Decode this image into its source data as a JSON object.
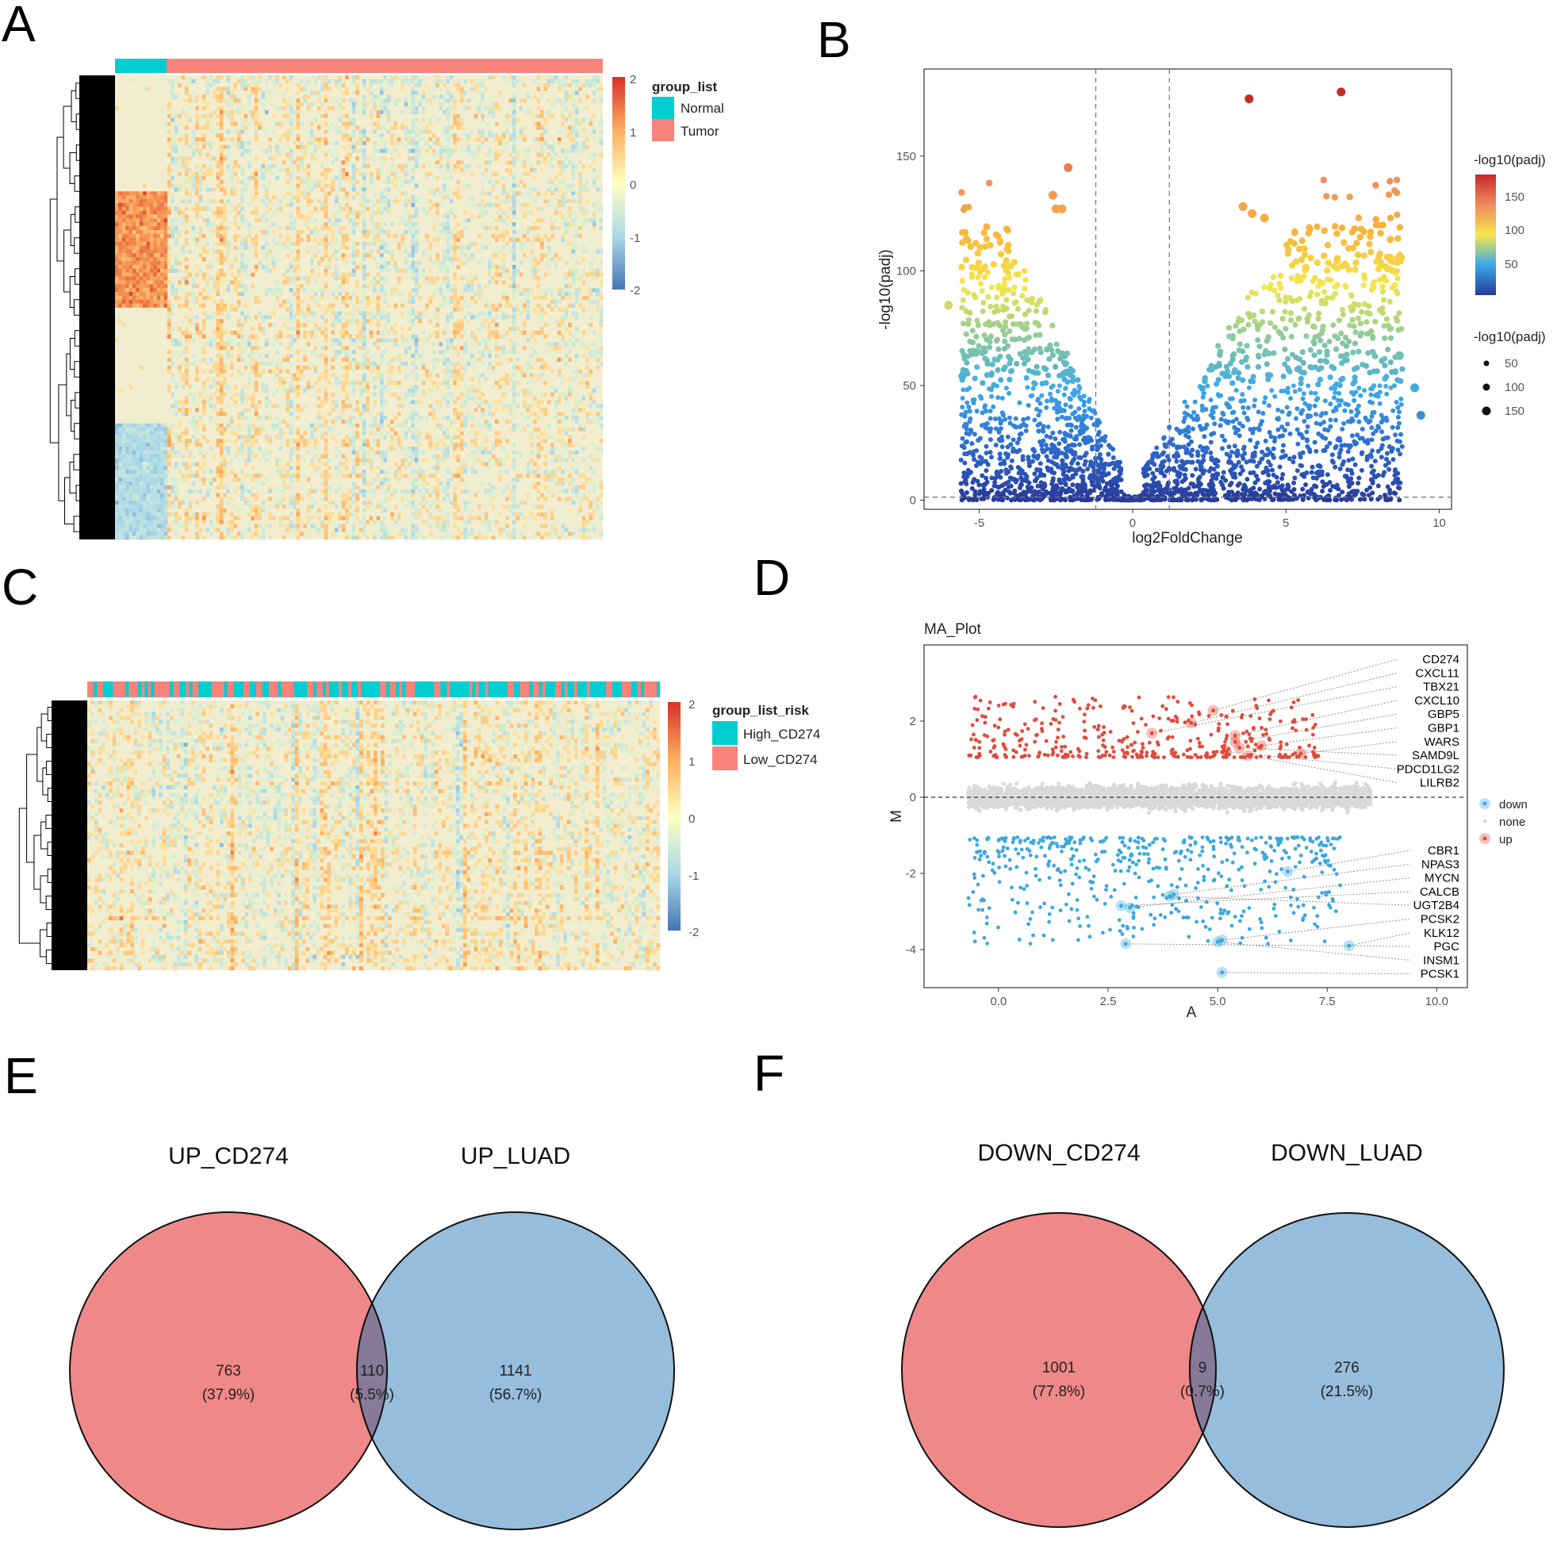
{
  "panels": {
    "A": "A",
    "B": "B",
    "C": "C",
    "D": "D",
    "E": "E",
    "F": "F"
  },
  "colors": {
    "normal": "#00CED1",
    "tumor": "#F8837A",
    "hm_low": "#4575B4",
    "hm_mid": "#FFFFBF",
    "hm_high": "#D73027",
    "venn_left": "#EB6E6E",
    "venn_right": "#7FAFD4",
    "ma_up": "#E24A3B",
    "ma_down": "#3CA8DF",
    "ma_none": "#D9D9D9"
  },
  "chart_data": [
    {
      "id": "A",
      "type": "heatmap",
      "scale_ticks": [
        "2",
        "1",
        "0",
        "-1",
        "-2"
      ],
      "scale_range": [
        -2,
        2
      ],
      "legend_title": "group_list",
      "legend_items": [
        "Normal",
        "Tumor"
      ],
      "groups": [
        {
          "name": "Normal",
          "fraction": 0.105
        },
        {
          "name": "Tumor",
          "fraction": 0.895
        }
      ]
    },
    {
      "id": "B",
      "type": "scatter",
      "xlabel": "log2FoldChange",
      "ylabel": "-log10(padj)",
      "xticks": [
        "-5",
        "0",
        "5",
        "10"
      ],
      "xtick_values": [
        -5,
        0,
        5,
        10
      ],
      "yticks": [
        "0",
        "50",
        "100",
        "150"
      ],
      "ytick_values": [
        0,
        50,
        100,
        150
      ],
      "xlim": [
        -6.8,
        10.4
      ],
      "ylim": [
        -4,
        188
      ],
      "vlines": [
        -1.2,
        1.2
      ],
      "hline": 1.3,
      "colorbar_title": "-log10(padj)",
      "colorbar_ticks": [
        "150",
        "100",
        "50"
      ],
      "colorbar_values": [
        150,
        100,
        50
      ],
      "size_title": "-log10(padj)",
      "size_items": [
        "50",
        "100",
        "150"
      ],
      "highlighted_points": [
        {
          "x": 6.8,
          "y": 178
        },
        {
          "x": 3.8,
          "y": 175
        },
        {
          "x": -2.1,
          "y": 145
        },
        {
          "x": -2.6,
          "y": 133
        },
        {
          "x": -2.3,
          "y": 127
        },
        {
          "x": -2.5,
          "y": 127
        },
        {
          "x": 3.6,
          "y": 128
        },
        {
          "x": 3.9,
          "y": 125
        },
        {
          "x": 4.3,
          "y": 123
        },
        {
          "x": -6.0,
          "y": 85
        },
        {
          "x": 8.7,
          "y": 63
        },
        {
          "x": 9.2,
          "y": 49
        },
        {
          "x": 9.4,
          "y": 37
        }
      ]
    },
    {
      "id": "C",
      "type": "heatmap",
      "scale_ticks": [
        "2",
        "1",
        "0",
        "-1",
        "-2"
      ],
      "scale_range": [
        -2,
        2
      ],
      "legend_title": "group_list_risk",
      "legend_items": [
        "High_CD274",
        "Low_CD274"
      ]
    },
    {
      "id": "D",
      "type": "scatter",
      "title": "MA_Plot",
      "xlabel": "A",
      "ylabel": "M",
      "xticks": [
        "0.0",
        "2.5",
        "5.0",
        "7.5",
        "10.0"
      ],
      "xtick_values": [
        0,
        2.5,
        5,
        7.5,
        10
      ],
      "yticks": [
        "2",
        "0",
        "-2",
        "-4"
      ],
      "ytick_values": [
        2,
        0,
        -2,
        -4
      ],
      "xlim": [
        -1.7,
        10.7
      ],
      "ylim": [
        -5,
        4
      ],
      "hline": 0,
      "legend_items": [
        "down",
        "none",
        "up"
      ],
      "up_labels": [
        {
          "gene": "CD274",
          "x": 4.9,
          "y": 2.28
        },
        {
          "gene": "CXCL11",
          "x": 4.4,
          "y": 1.95
        },
        {
          "gene": "TBX21",
          "x": 3.5,
          "y": 1.68
        },
        {
          "gene": "CXCL10",
          "x": 5.4,
          "y": 1.62
        },
        {
          "gene": "GBP5",
          "x": 5.4,
          "y": 1.45
        },
        {
          "gene": "GBP1",
          "x": 6.0,
          "y": 1.35
        },
        {
          "gene": "WARS",
          "x": 6.9,
          "y": 1.15
        },
        {
          "gene": "SAMD9L",
          "x": 5.5,
          "y": 1.3
        },
        {
          "gene": "PDCD1LG2",
          "x": 5.2,
          "y": 1.2
        },
        {
          "gene": "LILRB2",
          "x": 5.7,
          "y": 1.1
        }
      ],
      "down_labels": [
        {
          "gene": "CBR1",
          "x": 6.6,
          "y": -1.95
        },
        {
          "gene": "NPAS3",
          "x": 4.0,
          "y": -2.55
        },
        {
          "gene": "MYCN",
          "x": 3.0,
          "y": -2.9
        },
        {
          "gene": "CALCB",
          "x": 2.8,
          "y": -2.85
        },
        {
          "gene": "UGT2B4",
          "x": 3.9,
          "y": -2.6
        },
        {
          "gene": "PCSK2",
          "x": 5.1,
          "y": -3.75
        },
        {
          "gene": "KLK12",
          "x": 8.0,
          "y": -3.9
        },
        {
          "gene": "PGC",
          "x": 2.9,
          "y": -3.85
        },
        {
          "gene": "INSM1",
          "x": 5.0,
          "y": -3.8
        },
        {
          "gene": "PCSK1",
          "x": 5.1,
          "y": -4.6
        }
      ]
    },
    {
      "id": "E",
      "type": "venn",
      "sets": [
        "UP_CD274",
        "UP_LUAD"
      ],
      "regions": [
        {
          "count": "763",
          "pct": "(37.9%)"
        },
        {
          "count": "110",
          "pct": "(5.5%)"
        },
        {
          "count": "1141",
          "pct": "(56.7%)"
        }
      ]
    },
    {
      "id": "F",
      "type": "venn",
      "sets": [
        "DOWN_CD274",
        "DOWN_LUAD"
      ],
      "regions": [
        {
          "count": "1001",
          "pct": "(77.8%)"
        },
        {
          "count": "9",
          "pct": "(0.7%)"
        },
        {
          "count": "276",
          "pct": "(21.5%)"
        }
      ]
    }
  ]
}
